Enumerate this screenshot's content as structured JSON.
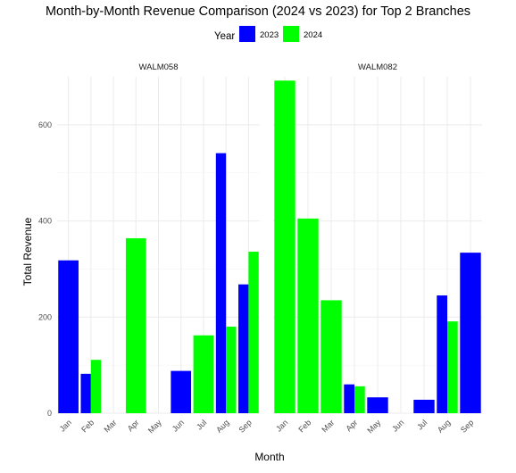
{
  "chart_data": {
    "type": "bar",
    "title": "Month-by-Month Revenue Comparison (2024 vs 2023) for Top 2 Branches",
    "xlabel": "Month",
    "ylabel": "Total Revenue",
    "ylim": [
      0,
      700
    ],
    "yticks": [
      0,
      200,
      400,
      600
    ],
    "grid": true,
    "legend": {
      "title": "Year",
      "placement": "top",
      "entries": [
        {
          "label": "2023",
          "color": "#0000ff"
        },
        {
          "label": "2024",
          "color": "#00ff00"
        }
      ]
    },
    "panels": [
      {
        "name": "WALM058",
        "categories": [
          "Jan",
          "Feb",
          "Mar",
          "Apr",
          "May",
          "Jun",
          "Jul",
          "Aug",
          "Sep"
        ],
        "series": [
          {
            "name": "2023",
            "color": "#0000ff",
            "values": [
              318,
              82,
              null,
              null,
              null,
              88,
              null,
              541,
              268
            ]
          },
          {
            "name": "2024",
            "color": "#00ff00",
            "values": [
              null,
              111,
              null,
              364,
              null,
              null,
              162,
              180,
              336
            ]
          }
        ]
      },
      {
        "name": "WALM082",
        "categories": [
          "Jan",
          "Feb",
          "Mar",
          "Apr",
          "May",
          "Jun",
          "Jul",
          "Aug",
          "Sep"
        ],
        "series": [
          {
            "name": "2023",
            "color": "#0000ff",
            "values": [
              null,
              null,
              null,
              60,
              33,
              null,
              28,
              245,
              334
            ]
          },
          {
            "name": "2024",
            "color": "#00ff00",
            "values": [
              692,
              405,
              235,
              56,
              null,
              null,
              null,
              191,
              null
            ]
          }
        ]
      }
    ]
  }
}
